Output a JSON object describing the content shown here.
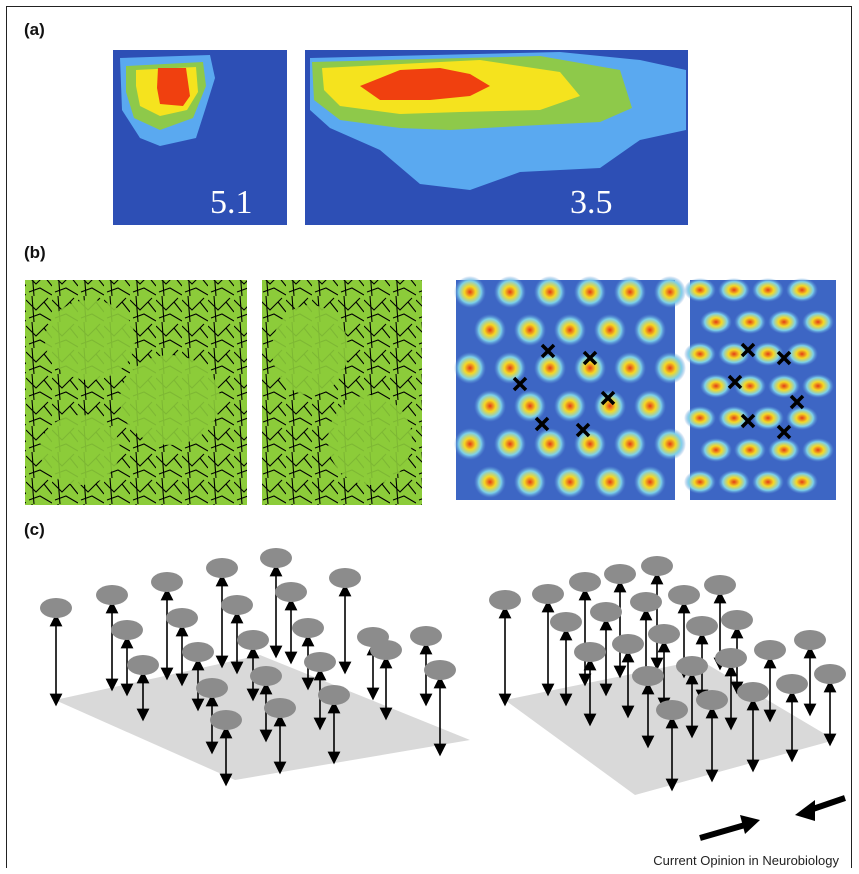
{
  "panels": {
    "a": {
      "label": "(a)",
      "map_left_value": "5.1",
      "map_right_value": "3.5"
    },
    "b": {
      "label": "(b)"
    },
    "c": {
      "label": "(c)"
    }
  },
  "credit": "Current Opinion in Neurobiology",
  "colors": {
    "map_background": "#2d4fb5",
    "map_light_blue": "#5aa9f0",
    "map_green": "#8ec94a",
    "map_yellow": "#f5e31e",
    "map_red": "#f0400f",
    "trajectory_green": "#8ccc3a",
    "plane_gray": "#d9d9d9",
    "node_gray": "#8c8c8c"
  },
  "icons": [
    "cross-marker",
    "arrow-icon"
  ]
}
